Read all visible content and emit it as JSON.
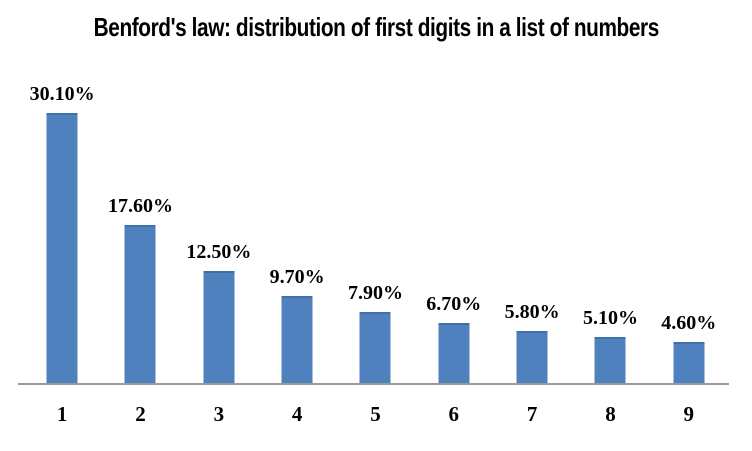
{
  "chart_data": {
    "type": "bar",
    "title": "Benford's law: distribution of first digits in a list of numbers",
    "categories": [
      "1",
      "2",
      "3",
      "4",
      "5",
      "6",
      "7",
      "8",
      "9"
    ],
    "values": [
      30.1,
      17.6,
      12.5,
      9.7,
      7.9,
      6.7,
      5.8,
      5.1,
      4.6
    ],
    "value_labels": [
      "30.10%",
      "17.60%",
      "12.50%",
      "9.70%",
      "7.90%",
      "6.70%",
      "5.80%",
      "5.10%",
      "4.60%"
    ],
    "xlabel": "",
    "ylabel": "",
    "ylim": [
      0,
      32
    ],
    "grid": false,
    "legend_position": "none",
    "bar_color": "#4E81BD",
    "bar_top_edge_color": "#416FA6",
    "axis_line_color": "#9A9A9A",
    "text_color": "#000000",
    "background_color": "#FFFFFF"
  }
}
